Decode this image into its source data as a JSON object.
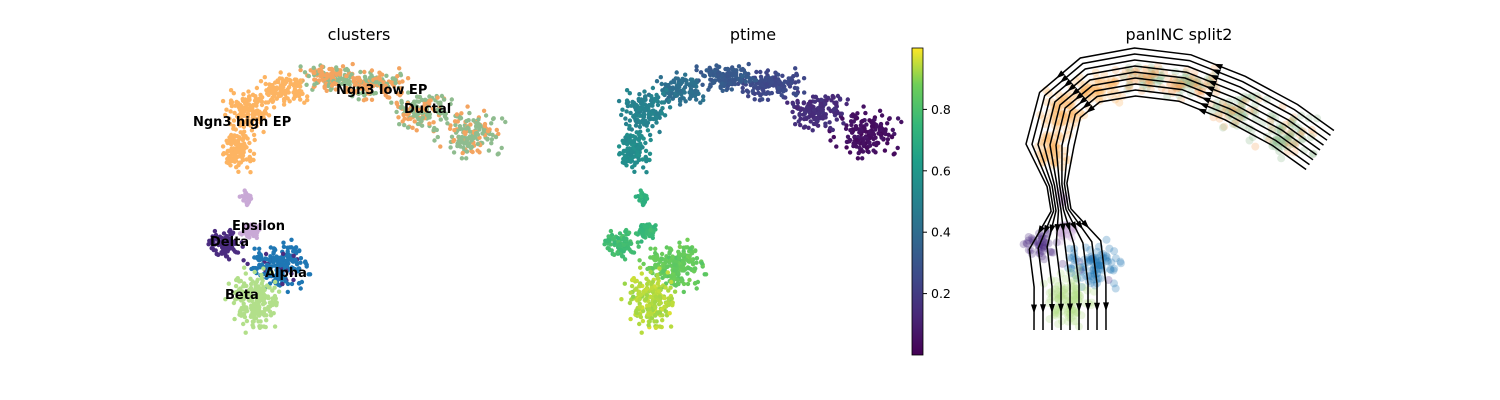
{
  "chart_data": [
    {
      "type": "scatter",
      "title": "clusters",
      "xlabel": "",
      "ylabel": "",
      "axes": "off",
      "categories": [
        "Ductal",
        "Ngn3 low EP",
        "Ngn3 high EP",
        "Epsilon",
        "Delta",
        "Alpha",
        "Beta"
      ],
      "colors": {
        "Ductal": "#8fbc8f",
        "Ngn3 low EP": "#f4a460",
        "Ngn3 high EP": "#fdb462",
        "Epsilon": "#c9a9d6",
        "Delta": "#4b2c80",
        "Alpha": "#1f77b4",
        "Beta": "#b2df8a"
      },
      "labels": [
        "Ngn3 low EP",
        "Ductal",
        "Ngn3 high EP",
        "Epsilon",
        "Delta",
        "Alpha",
        "Beta"
      ]
    },
    {
      "type": "scatter",
      "title": "ptime",
      "xlabel": "",
      "ylabel": "",
      "axes": "off",
      "colormap": "viridis",
      "colorbar": {
        "range": [
          0.0,
          1.0
        ],
        "ticks": [
          0.2,
          0.4,
          0.6,
          0.8
        ],
        "tick_labels": [
          "0.2",
          "0.4",
          "0.6",
          "0.8"
        ]
      }
    },
    {
      "type": "scatter",
      "title": "panINC split2",
      "xlabel": "",
      "ylabel": "",
      "axes": "off",
      "overlay": "streamlines",
      "stream_color": "#000000"
    }
  ]
}
